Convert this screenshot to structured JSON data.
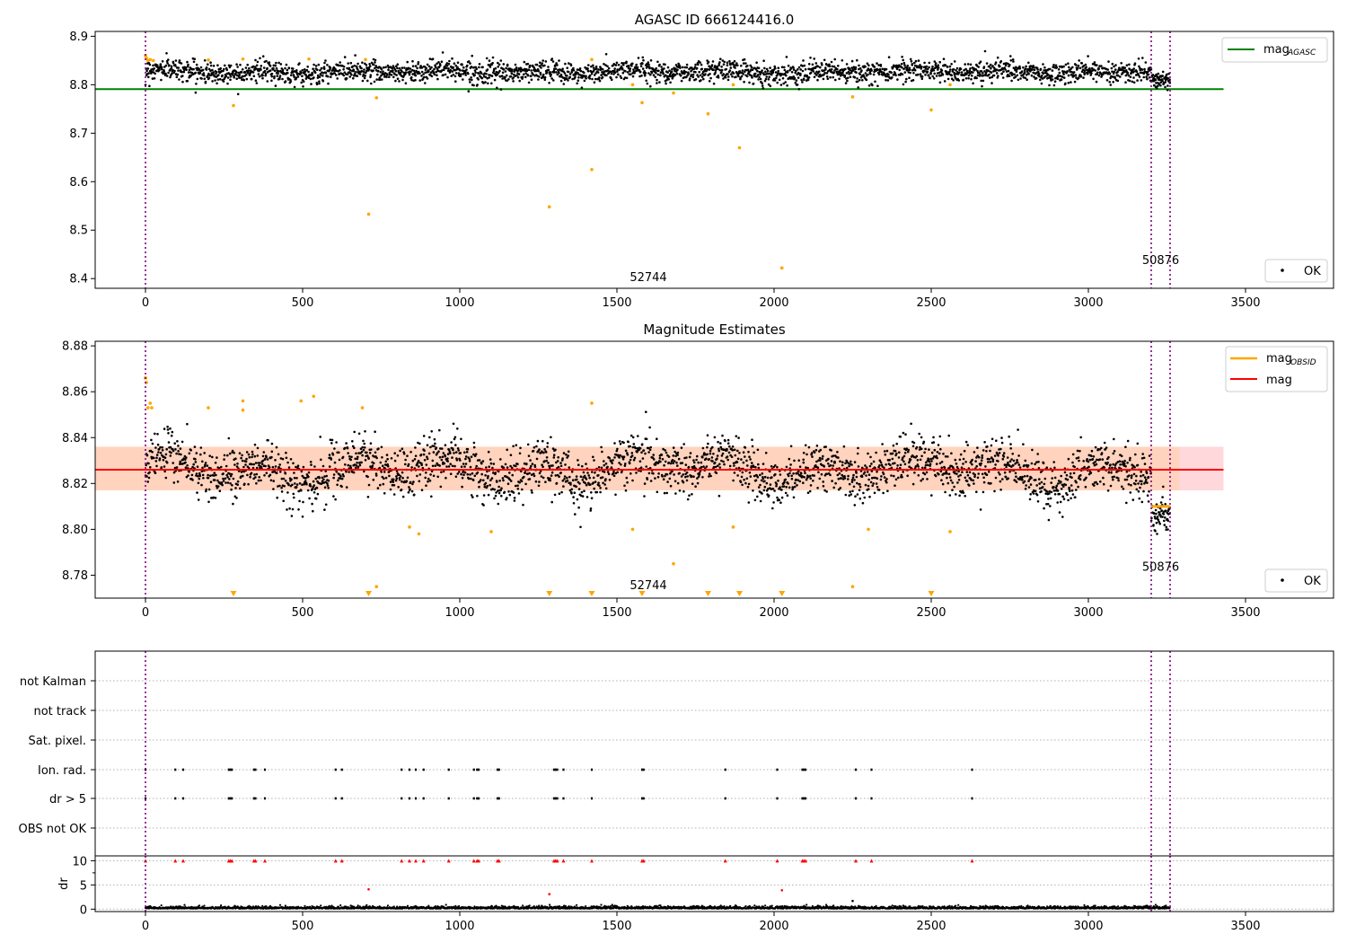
{
  "colors": {
    "ok": "#000000",
    "excluded": "#ffa500",
    "mag_agasc": "#008000",
    "mag_mean": "#ff0000",
    "band_outer": "#ffd8dc",
    "band_inner": "#ffd2b8",
    "flag_red": "#ff0000",
    "obs_line": "#800080"
  },
  "chart_data": [
    {
      "type": "scatter",
      "title": "AGASC ID 666124416.0",
      "xlim": [
        -160,
        3780
      ],
      "ylim": [
        8.38,
        8.91
      ],
      "xticks": [
        0,
        500,
        1000,
        1500,
        2000,
        2500,
        3000,
        3500
      ],
      "yticks": [
        8.4,
        8.5,
        8.6,
        8.7,
        8.8,
        8.9
      ],
      "ytick_labels": [
        "8.4",
        "8.5",
        "8.6",
        "8.7",
        "8.8",
        "8.9"
      ],
      "mag_agasc": 8.791,
      "mag_agasc_xrange": [
        -160,
        3430
      ],
      "obs_lines": [
        0,
        3200,
        3260
      ],
      "obs_labels": [
        {
          "text": "52744",
          "x": 1600,
          "y": 8.395
        },
        {
          "text": "50876",
          "x": 3230,
          "y": 8.43
        }
      ],
      "series": {
        "ok": {
          "segments": [
            {
              "x0": 0,
              "x1": 3200,
              "center": 8.827,
              "spread": 0.018,
              "n": 2600,
              "wave_amp": 0.006
            },
            {
              "x0": 3200,
              "x1": 3260,
              "center": 8.81,
              "spread": 0.012,
              "n": 60,
              "wave_amp": 0
            }
          ]
        },
        "excluded": {
          "points": [
            [
              0,
              8.86
            ],
            [
              3,
              8.855
            ],
            [
              8,
              8.85
            ],
            [
              15,
              8.852
            ],
            [
              25,
              8.85
            ],
            [
              200,
              8.851
            ],
            [
              280,
              8.757
            ],
            [
              310,
              8.853
            ],
            [
              520,
              8.853
            ],
            [
              700,
              8.852
            ],
            [
              710,
              8.533
            ],
            [
              735,
              8.773
            ],
            [
              1285,
              8.548
            ],
            [
              1420,
              8.625
            ],
            [
              1420,
              8.852
            ],
            [
              1550,
              8.8
            ],
            [
              1580,
              8.763
            ],
            [
              1680,
              8.783
            ],
            [
              1790,
              8.74
            ],
            [
              1870,
              8.8
            ],
            [
              1890,
              8.67
            ],
            [
              2025,
              8.422
            ],
            [
              2250,
              8.775
            ],
            [
              2500,
              8.748
            ],
            [
              2560,
              8.8
            ]
          ]
        }
      },
      "legend": [
        {
          "label": "mag",
          "sub": "AGASC",
          "kind": "line",
          "color_key": "mag_agasc",
          "position": "top-right"
        },
        {
          "label": "OK",
          "kind": "point",
          "color_key": "ok",
          "position": "bottom-right"
        }
      ]
    },
    {
      "type": "scatter",
      "title": "Magnitude Estimates",
      "xlim": [
        -160,
        3780
      ],
      "ylim": [
        8.77,
        8.882
      ],
      "xticks": [
        0,
        500,
        1000,
        1500,
        2000,
        2500,
        3000,
        3500
      ],
      "yticks": [
        8.78,
        8.8,
        8.82,
        8.84,
        8.86,
        8.88
      ],
      "ytick_labels": [
        "8.78",
        "8.80",
        "8.82",
        "8.84",
        "8.86",
        "8.88"
      ],
      "mag": 8.826,
      "mag_xrange": [
        -160,
        3430
      ],
      "band_outer": [
        8.817,
        8.836
      ],
      "band_inner": [
        8.817,
        8.836
      ],
      "band_inner_xrange": [
        -160,
        3290
      ],
      "mag_obsid": [
        {
          "x0": -5,
          "x1": 5,
          "y": 8.866
        },
        {
          "x0": 3200,
          "x1": 3260,
          "y": 8.81
        }
      ],
      "obs_lines": [
        0,
        3200,
        3260
      ],
      "obs_labels": [
        {
          "text": "52744",
          "x": 1600,
          "y": 8.774
        },
        {
          "text": "50876",
          "x": 3230,
          "y": 8.782
        }
      ],
      "series": {
        "ok": {
          "segments": [
            {
              "x0": 0,
              "x1": 3200,
              "center": 8.826,
              "spread": 0.009,
              "n": 2600,
              "wave_amp": 0.007
            },
            {
              "x0": 3200,
              "x1": 3260,
              "center": 8.807,
              "spread": 0.007,
              "n": 60,
              "wave_amp": 0
            }
          ]
        },
        "excluded": {
          "points": [
            [
              0,
              8.866
            ],
            [
              3,
              8.864
            ],
            [
              8,
              8.853
            ],
            [
              15,
              8.855
            ],
            [
              20,
              8.853
            ],
            [
              200,
              8.853
            ],
            [
              310,
              8.856
            ],
            [
              310,
              8.852
            ],
            [
              495,
              8.856
            ],
            [
              535,
              8.858
            ],
            [
              690,
              8.853
            ],
            [
              735,
              8.775
            ],
            [
              840,
              8.801
            ],
            [
              870,
              8.798
            ],
            [
              1100,
              8.799
            ],
            [
              1420,
              8.855
            ],
            [
              1550,
              8.8
            ],
            [
              1680,
              8.785
            ],
            [
              1870,
              8.801
            ],
            [
              2250,
              8.775
            ],
            [
              2300,
              8.8
            ],
            [
              2560,
              8.799
            ]
          ]
        },
        "off_scale": {
          "x": [
            280,
            710,
            1285,
            1420,
            1580,
            1790,
            1890,
            2025,
            2500
          ]
        }
      },
      "legend": [
        {
          "label": "mag",
          "sub": "OBSID",
          "kind": "line",
          "color_key": "excluded",
          "position": "top-right"
        },
        {
          "label": "mag",
          "sub": "",
          "kind": "line",
          "color_key": "mag_mean",
          "position": "top-right"
        },
        {
          "label": "OK",
          "kind": "point",
          "color_key": "ok",
          "position": "bottom-right"
        }
      ]
    },
    {
      "type": "scatter",
      "title": "",
      "xlim": [
        -160,
        3780
      ],
      "xticks": [
        0,
        500,
        1000,
        1500,
        2000,
        2500,
        3000,
        3500
      ],
      "obs_lines": [
        0,
        3200,
        3260
      ],
      "flag_rows": [
        "not Kalman",
        "not track",
        "Sat. pixel.",
        "Ion. rad.",
        "dr > 5",
        "OBS not OK"
      ],
      "flag_events": {
        "Ion. rad.": [
          0,
          95,
          120,
          265,
          270,
          275,
          345,
          350,
          380,
          605,
          625,
          815,
          840,
          860,
          885,
          965,
          1045,
          1055,
          1060,
          1120,
          1125,
          1300,
          1305,
          1310,
          1330,
          1420,
          1580,
          1585,
          1845,
          2010,
          2090,
          2095,
          2100,
          2260,
          2310,
          2630
        ],
        "dr > 5": [
          0,
          95,
          120,
          265,
          270,
          275,
          345,
          350,
          380,
          605,
          625,
          815,
          840,
          860,
          885,
          965,
          1045,
          1055,
          1060,
          1120,
          1125,
          1300,
          1305,
          1310,
          1330,
          1420,
          1580,
          1585,
          1845,
          2010,
          2090,
          2095,
          2100,
          2260,
          2310,
          2630
        ]
      },
      "dr": {
        "ylabel": "dr",
        "yticks": [
          0,
          5,
          10
        ],
        "ylim": [
          -0.5,
          11
        ],
        "baseline_n": 2700,
        "baseline_max": 0.9,
        "excluded": [
          [
            710,
            4.1
          ],
          [
            1285,
            3.1
          ],
          [
            2025,
            3.9
          ],
          [
            2250,
            1.7
          ]
        ],
        "red_cap": 10
      }
    }
  ]
}
